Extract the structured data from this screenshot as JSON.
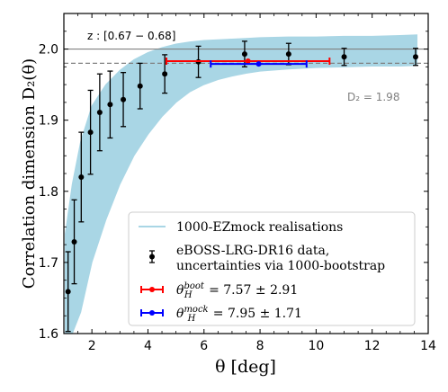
{
  "chart_data": {
    "type": "scatter",
    "xlabel": "θ [deg]",
    "ylabel": "Correlation dimension D₂(θ)",
    "xlim": [
      1.0,
      14.0
    ],
    "ylim": [
      1.6,
      2.05
    ],
    "xticks": [
      "2",
      "4",
      "6",
      "8",
      "10",
      "12",
      "14"
    ],
    "yticks": [
      "1.6",
      "1.7",
      "1.8",
      "1.9",
      "2.0"
    ],
    "xtick_values": [
      2,
      4,
      6,
      8,
      10,
      12,
      14
    ],
    "ytick_values": [
      1.6,
      1.7,
      1.8,
      1.9,
      2.0
    ],
    "redshift_label": "z : [0.67 − 0.68]",
    "reference_lines": [
      {
        "y": 2.0,
        "style": "solid",
        "color": "#808080"
      },
      {
        "y": 1.98,
        "style": "dashed",
        "color": "#808080",
        "label": "D₂ = 1.98"
      }
    ],
    "mock_band": {
      "name": "1000-EZmock realisations",
      "color": "#a9d6e5",
      "x": [
        1.05,
        1.3,
        1.6,
        2.0,
        2.5,
        3.0,
        3.5,
        4.0,
        4.5,
        5.0,
        5.5,
        6.0,
        6.5,
        7.0,
        7.5,
        8.0,
        9.0,
        10.0,
        11.0,
        12.0,
        13.0,
        13.6
      ],
      "upper": [
        1.74,
        1.81,
        1.87,
        1.92,
        1.95,
        1.97,
        1.985,
        1.995,
        2.002,
        2.007,
        2.01,
        2.012,
        2.013,
        2.014,
        2.015,
        2.016,
        2.017,
        2.017,
        2.018,
        2.018,
        2.019,
        2.02
      ],
      "lower": [
        1.6,
        1.6,
        1.63,
        1.7,
        1.76,
        1.81,
        1.85,
        1.88,
        1.905,
        1.925,
        1.94,
        1.95,
        1.957,
        1.962,
        1.966,
        1.969,
        1.972,
        1.974,
        1.975,
        1.976,
        1.976,
        1.977
      ]
    },
    "series": [
      {
        "name": "eBOSS-LRG-DR16 data,\nuncertainties via 1000-bootstrap",
        "color": "#000000",
        "x": [
          1.15,
          1.37,
          1.62,
          1.95,
          2.28,
          2.65,
          3.12,
          3.72,
          4.6,
          5.8,
          7.45,
          9.02,
          11.0,
          13.55
        ],
        "y": [
          1.659,
          1.729,
          1.82,
          1.883,
          1.911,
          1.922,
          1.929,
          1.948,
          1.965,
          1.982,
          1.993,
          1.993,
          1.989,
          1.989
        ],
        "yerr": [
          0.056,
          0.059,
          0.063,
          0.059,
          0.054,
          0.047,
          0.038,
          0.032,
          0.027,
          0.022,
          0.018,
          0.015,
          0.012,
          0.012
        ]
      }
    ],
    "estimates": [
      {
        "name": "θ_H^boot = 7.57 ± 2.91",
        "label_symbol": "θ",
        "label_sub": "H",
        "label_sup": "boot",
        "label_rest": " = 7.57 ± 2.91",
        "color": "#ff0000",
        "x": 7.57,
        "xerr": 2.91,
        "y": 1.983
      },
      {
        "name": "θ_H^mock = 7.95 ± 1.71",
        "label_symbol": "θ",
        "label_sub": "H",
        "label_sup": "mock",
        "label_rest": " = 7.95 ± 1.71",
        "color": "#0000ff",
        "x": 7.95,
        "xerr": 1.71,
        "y": 1.979
      }
    ],
    "legend": {
      "placement": "bottom-right",
      "mock_label": "1000-EZmock realisations",
      "data_label_line1": "eBOSS-LRG-DR16 data,",
      "data_label_line2": "uncertainties via 1000-bootstrap"
    },
    "grid": false
  }
}
